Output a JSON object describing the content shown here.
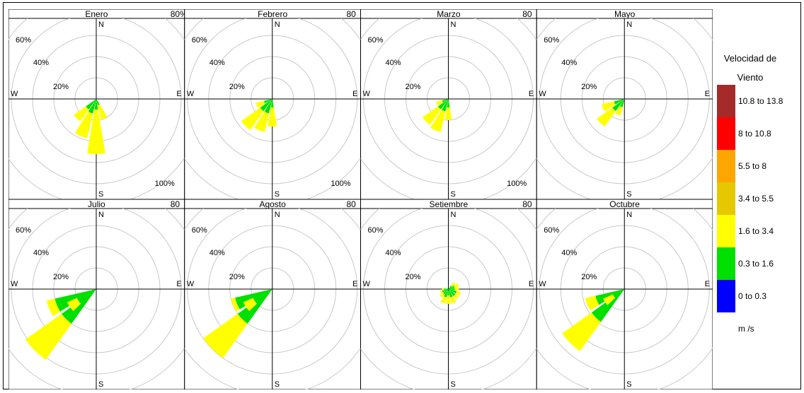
{
  "chart_data": {
    "type": "windrose",
    "legend": {
      "title_line1": "Velocidad de",
      "title_line2": "Viento",
      "unit": "m /s",
      "bins": [
        {
          "label": "10.8 to 13.8",
          "color": "#a52a2a"
        },
        {
          "label": "8 to 10.8",
          "color": "#ff0000"
        },
        {
          "label": "5.5 to 8",
          "color": "#ffa500"
        },
        {
          "label": "3.4 to 5.5",
          "color": "#e6c800"
        },
        {
          "label": "1.6 to 3.4",
          "color": "#ffff00"
        },
        {
          "label": "0.3 to 1.6",
          "color": "#00e000"
        },
        {
          "label": "0 to 0.3",
          "color": "#0000ff"
        }
      ]
    },
    "directions": [
      "N",
      "E",
      "S",
      "W"
    ],
    "panels": [
      {
        "title": "Enero",
        "top_right": "80%",
        "bottom_right": "100%",
        "rings": [
          "20%",
          "40%",
          "60%"
        ],
        "petals": [
          {
            "dir": 180,
            "green": 10,
            "yellow": 52
          },
          {
            "dir": 202.5,
            "green": 14,
            "yellow": 38
          },
          {
            "dir": 225,
            "green": 12,
            "yellow": 26
          },
          {
            "dir": 157.5,
            "green": 6,
            "yellow": 20
          }
        ]
      },
      {
        "title": "Febrero",
        "top_right": "80",
        "bottom_right": "100%",
        "rings": [
          "20%",
          "40%",
          "60%"
        ],
        "petals": [
          {
            "dir": 202.5,
            "green": 14,
            "yellow": 32
          },
          {
            "dir": 225,
            "green": 14,
            "yellow": 36
          },
          {
            "dir": 180,
            "green": 8,
            "yellow": 26
          },
          {
            "dir": 247.5,
            "green": 8,
            "yellow": 16
          }
        ]
      },
      {
        "title": "Marzo",
        "top_right": "80",
        "bottom_right": "100%",
        "rings": [
          "20%",
          "40%",
          "60%"
        ],
        "petals": [
          {
            "dir": 202.5,
            "green": 12,
            "yellow": 32
          },
          {
            "dir": 225,
            "green": 12,
            "yellow": 30
          },
          {
            "dir": 180,
            "green": 8,
            "yellow": 20
          },
          {
            "dir": 247.5,
            "green": 6,
            "yellow": 12
          }
        ]
      },
      {
        "title": "Mayo",
        "top_right": "",
        "bottom_right": "",
        "rings": [
          "20%",
          "40%",
          "60%"
        ],
        "petals": [
          {
            "dir": 225,
            "green": 14,
            "yellow": 32
          },
          {
            "dir": 247.5,
            "green": 10,
            "yellow": 22
          },
          {
            "dir": 202.5,
            "green": 8,
            "yellow": 16
          }
        ]
      },
      {
        "title": "Julio",
        "top_right": "80",
        "bottom_right": "",
        "rings": [
          "20%",
          "40%",
          "60%"
        ],
        "petals": [
          {
            "dir": 225,
            "green": 40,
            "yellow": 82
          },
          {
            "dir": 247.5,
            "green": 40,
            "yellow": 48
          },
          {
            "dir": 236,
            "green": 20,
            "yellow": 30
          }
        ]
      },
      {
        "title": "Agosto",
        "top_right": "80",
        "bottom_right": "",
        "rings": [
          "20%",
          "40%",
          "60%"
        ],
        "petals": [
          {
            "dir": 225,
            "green": 40,
            "yellow": 80
          },
          {
            "dir": 247.5,
            "green": 36,
            "yellow": 40
          },
          {
            "dir": 236,
            "green": 20,
            "yellow": 30
          }
        ]
      },
      {
        "title": "Setiembre",
        "top_right": "80",
        "bottom_right": "",
        "rings": [
          "20%",
          "40%",
          "60%"
        ],
        "petals": [
          {
            "dir": 180,
            "green": 6,
            "yellow": 14
          },
          {
            "dir": 202.5,
            "green": 8,
            "yellow": 14
          },
          {
            "dir": 157.5,
            "green": 8,
            "yellow": 14
          },
          {
            "dir": 135,
            "green": 8,
            "yellow": 12
          },
          {
            "dir": 112.5,
            "green": 8,
            "yellow": 12
          },
          {
            "dir": 90,
            "green": 6,
            "yellow": 10
          },
          {
            "dir": 67.5,
            "green": 6,
            "yellow": 10
          },
          {
            "dir": 45,
            "green": 4,
            "yellow": 8
          },
          {
            "dir": 225,
            "green": 6,
            "yellow": 10
          },
          {
            "dir": 247.5,
            "green": 6,
            "yellow": 8
          },
          {
            "dir": 270,
            "green": 4,
            "yellow": 6
          }
        ]
      },
      {
        "title": "Octubre",
        "top_right": "",
        "bottom_right": "",
        "rings": [
          "20%",
          "40%",
          "60%"
        ],
        "petals": [
          {
            "dir": 225,
            "green": 38,
            "yellow": 72
          },
          {
            "dir": 247.5,
            "green": 28,
            "yellow": 38
          },
          {
            "dir": 236,
            "green": 12,
            "yellow": 22
          }
        ]
      }
    ]
  }
}
